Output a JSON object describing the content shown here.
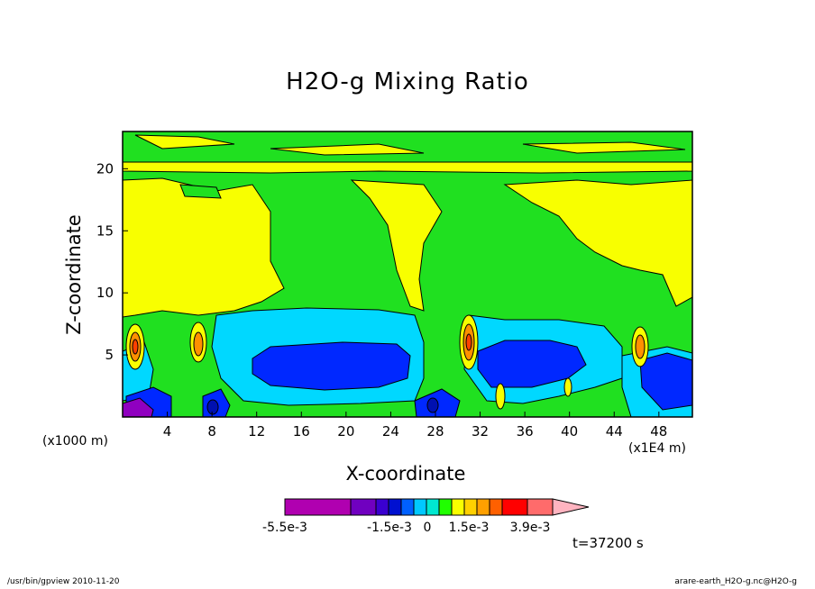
{
  "chart_data": {
    "type": "heatmap",
    "title": "H2O-g Mixing Ratio",
    "xlabel": "X-coordinate",
    "ylabel": "Z-coordinate",
    "x_unit_left": "(x1000 m)",
    "x_unit_right": "(x1E4 m)",
    "x_ticks": [
      "4",
      "8",
      "12",
      "16",
      "20",
      "24",
      "28",
      "32",
      "36",
      "40",
      "44",
      "48"
    ],
    "y_ticks": [
      "5",
      "10",
      "15",
      "20"
    ],
    "xlim": [
      0,
      51
    ],
    "ylim": [
      0,
      23
    ],
    "colorbar": {
      "colors": [
        "#b000b0",
        "#b000b0",
        "#b000b0",
        "#b000b0",
        "#7000c0",
        "#3a00d0",
        "#0010d0",
        "#0060ff",
        "#00c8ff",
        "#00e8d0",
        "#20ff00",
        "#f8ff00",
        "#ffd000",
        "#ffa000",
        "#ff6000",
        "#ff0000",
        "#ff6b6b",
        "#ffb4c0"
      ],
      "labels": [
        "-5.5e-3",
        "-1.5e-3",
        "0",
        "1.5e-3",
        "3.9e-3"
      ]
    },
    "regions": [
      {
        "level": "green",
        "color": "#20e020",
        "shapes": "background"
      },
      {
        "level": "yellow",
        "color": "#f8ff00"
      },
      {
        "level": "cyan",
        "color": "#00d8ff"
      },
      {
        "level": "blue",
        "color": "#0028ff"
      },
      {
        "level": "orange",
        "color": "#ff9000"
      },
      {
        "level": "purple",
        "color": "#8000c0"
      }
    ]
  },
  "timestamp": "t=37200 s",
  "footer_left": "/usr/bin/gpview   2010-11-20",
  "footer_right": "arare-earth_H2O-g.nc@H2O-g"
}
